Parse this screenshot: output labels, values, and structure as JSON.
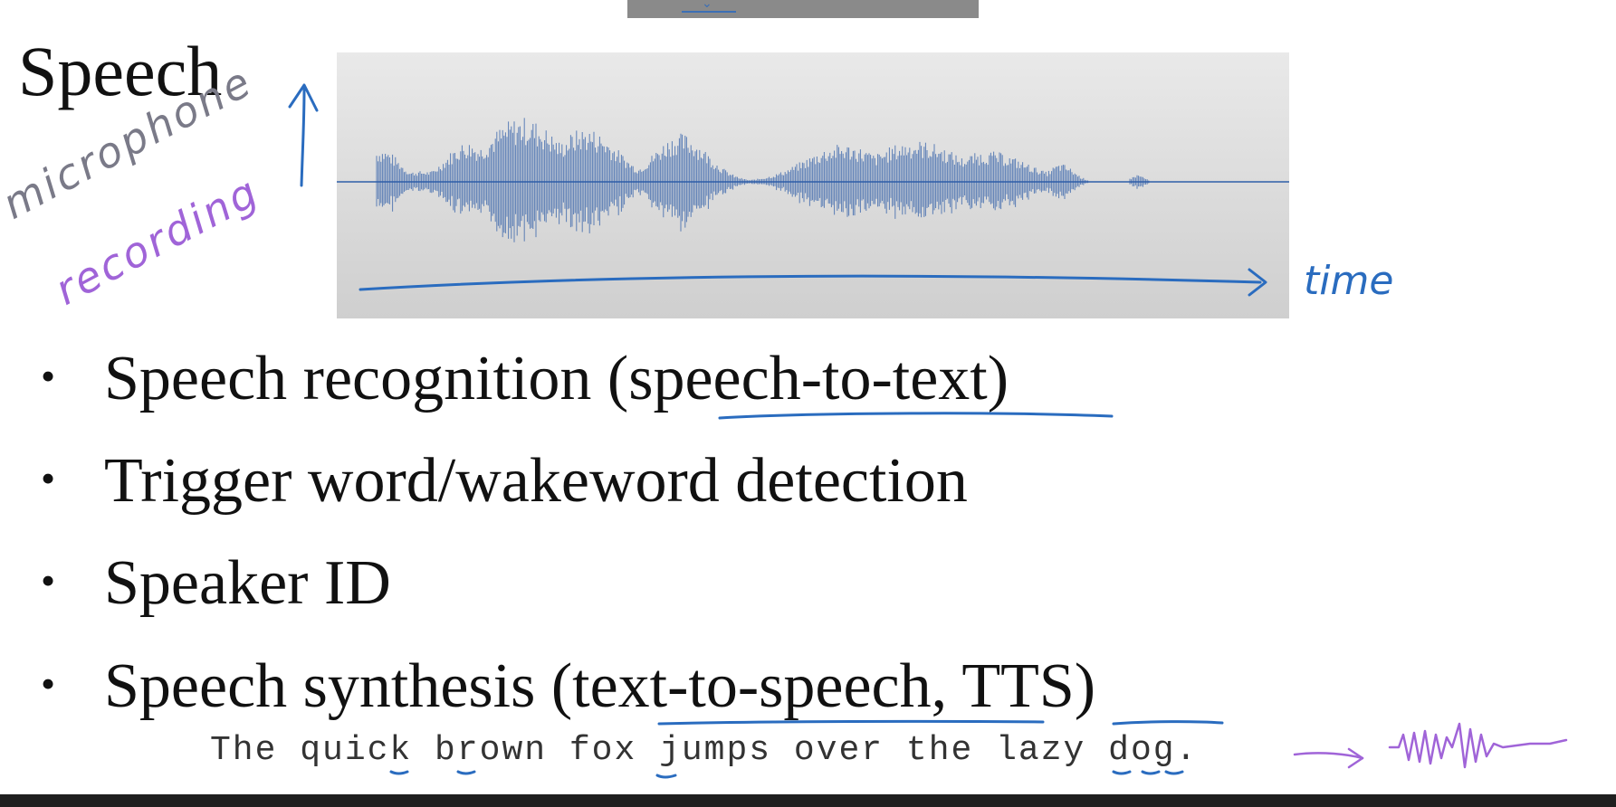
{
  "slide": {
    "title": "Speech",
    "bullets": [
      "Speech recognition (speech-to-text)",
      "Trigger word/wakeword detection",
      "Speaker ID",
      "Speech synthesis (text-to-speech, TTS)"
    ],
    "sample_sentence": "The quick brown fox jumps over the lazy dog."
  },
  "annotations": {
    "microphone": "microphone",
    "recording": "recording",
    "time": "time"
  },
  "colors": {
    "waveform": "#2f5ea8",
    "blue_ink": "#2a6cbf",
    "purple_ink": "#a064d8",
    "panel": "#d8d8d8"
  }
}
